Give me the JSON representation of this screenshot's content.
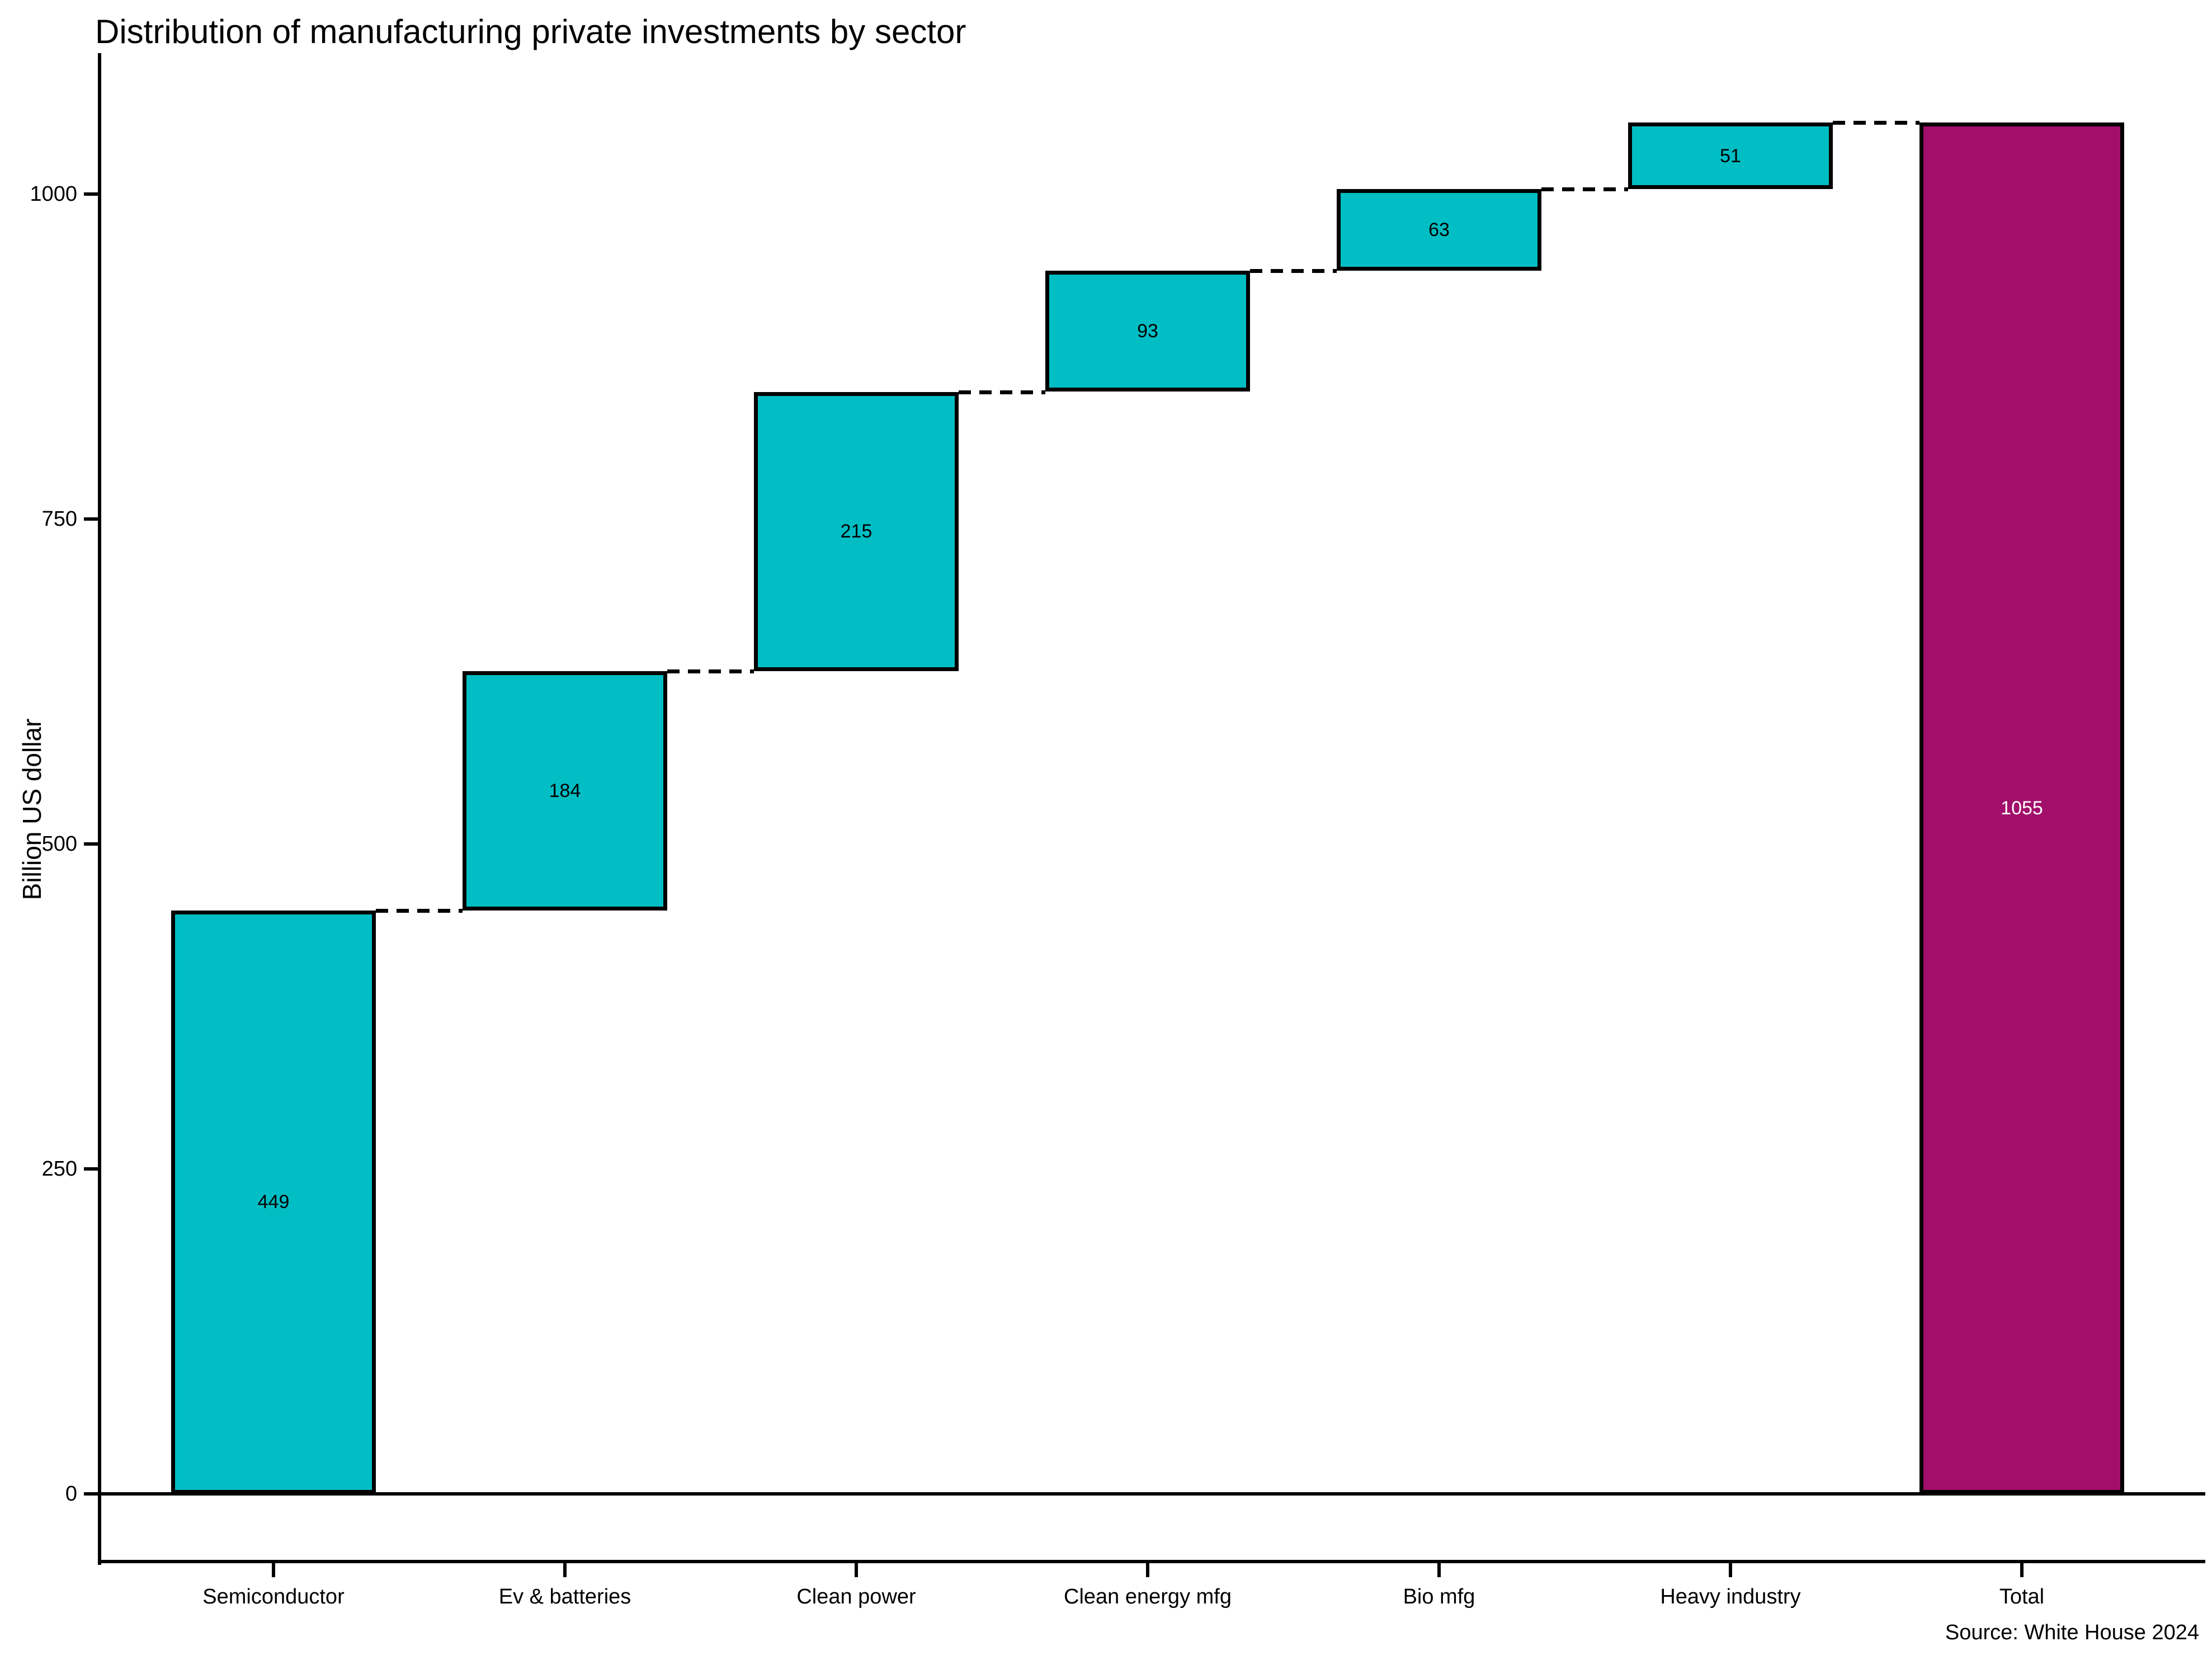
{
  "title": "Distribution of manufacturing private investments by sector",
  "source": "Source: White House 2024",
  "y_axis": {
    "label": "Billion US dollar",
    "tick_labels": [
      "0",
      "250",
      "500",
      "750",
      "1000"
    ]
  },
  "colors": {
    "increase_fill": "#00BEC4",
    "total_fill": "#A10F6B",
    "bar_border": "#000000",
    "axis": "#000000",
    "label_on_increase": "#000000",
    "label_on_total": "#ffffff",
    "background": "#ffffff"
  },
  "chart_data": {
    "type": "bar",
    "subtype": "waterfall",
    "title": "Distribution of manufacturing private investments by sector",
    "xlabel": "",
    "ylabel": "Billion US dollar",
    "categories": [
      "Semiconductor",
      "Ev & batteries",
      "Clean power",
      "Clean energy mfg",
      "Bio mfg",
      "Heavy industry",
      "Total"
    ],
    "values": [
      449,
      184,
      215,
      93,
      63,
      51,
      1055
    ],
    "bars": [
      {
        "category": "Semiconductor",
        "value": 449,
        "start": 0,
        "end": 449,
        "role": "increase",
        "label": "449"
      },
      {
        "category": "Ev & batteries",
        "value": 184,
        "start": 449,
        "end": 633,
        "role": "increase",
        "label": "184"
      },
      {
        "category": "Clean power",
        "value": 215,
        "start": 633,
        "end": 848,
        "role": "increase",
        "label": "215"
      },
      {
        "category": "Clean energy mfg",
        "value": 93,
        "start": 848,
        "end": 941,
        "role": "increase",
        "label": "93"
      },
      {
        "category": "Bio mfg",
        "value": 63,
        "start": 941,
        "end": 1004,
        "role": "increase",
        "label": "63"
      },
      {
        "category": "Heavy industry",
        "value": 51,
        "start": 1004,
        "end": 1055,
        "role": "increase",
        "label": "51"
      },
      {
        "category": "Total",
        "value": 1055,
        "start": 0,
        "end": 1055,
        "role": "total",
        "label": "1055"
      }
    ],
    "yticks": [
      0,
      250,
      500,
      750,
      1000
    ],
    "ylim": [
      -53,
      1108
    ],
    "grid": false,
    "legend": false,
    "zero_baseline": true,
    "connectors": "dashed between consecutive bars at cumulative level",
    "source": "Source: White House 2024"
  }
}
